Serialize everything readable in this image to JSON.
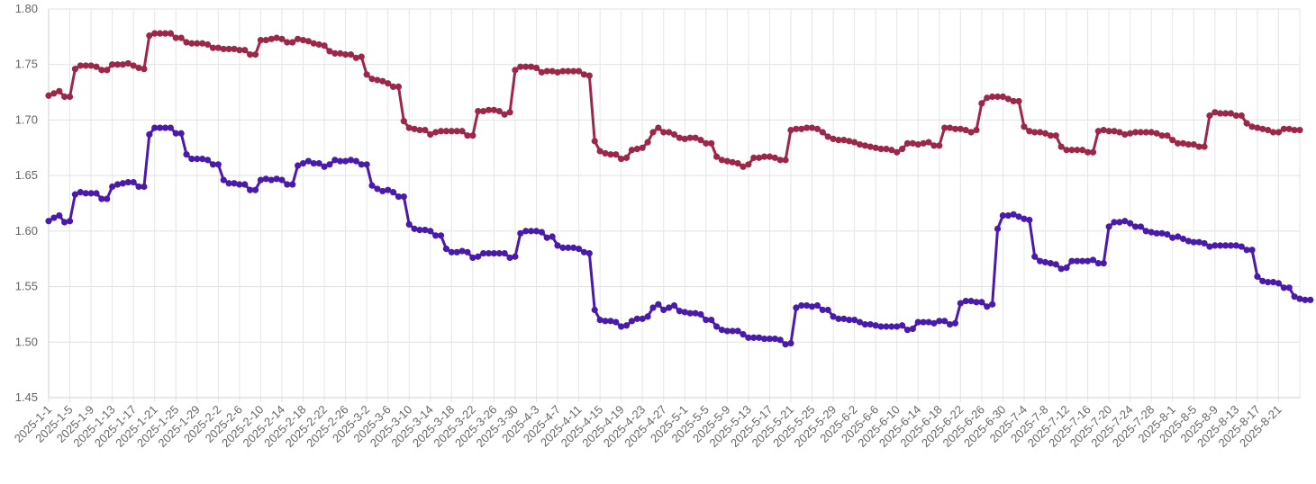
{
  "chart_data": {
    "type": "line",
    "title": "",
    "xlabel": "",
    "ylabel": "",
    "ylim": [
      1.45,
      1.8
    ],
    "yticks": [
      1.8,
      1.75,
      1.7,
      1.65,
      1.6,
      1.55,
      1.5,
      1.45
    ],
    "yticklabels": [
      "1.80",
      "1.75",
      "1.70",
      "1.65",
      "1.60",
      "1.55",
      "1.50",
      "1.45"
    ],
    "x_start": "2025-1-1",
    "x_end": "2025-8-21",
    "x_tick_labels": [
      "2025-1-1",
      "2025-1-5",
      "2025-1-9",
      "2025-1-13",
      "2025-1-17",
      "2025-1-21",
      "2025-1-25",
      "2025-1-29",
      "2025-2-2",
      "2025-2-6",
      "2025-2-10",
      "2025-2-14",
      "2025-2-18",
      "2025-2-22",
      "2025-2-26",
      "2025-3-2",
      "2025-3-6",
      "2025-3-10",
      "2025-3-14",
      "2025-3-18",
      "2025-3-22",
      "2025-3-26",
      "2025-3-30",
      "2025-4-3",
      "2025-4-7",
      "2025-4-11",
      "2025-4-15",
      "2025-4-19",
      "2025-4-23",
      "2025-4-27",
      "2025-5-1",
      "2025-5-5",
      "2025-5-9",
      "2025-5-13",
      "2025-5-17",
      "2025-5-21",
      "2025-5-25",
      "2025-5-29",
      "2025-6-2",
      "2025-6-6",
      "2025-6-10",
      "2025-6-14",
      "2025-6-18",
      "2025-6-22",
      "2025-6-26",
      "2025-6-30",
      "2025-7-4",
      "2025-7-8",
      "2025-7-12",
      "2025-7-16",
      "2025-7-20",
      "2025-7-24",
      "2025-7-28",
      "2025-8-1",
      "2025-8-5",
      "2025-8-9",
      "2025-8-13",
      "2025-8-17",
      "2025-8-21"
    ],
    "grid": true,
    "legend": "none",
    "series": [
      {
        "color": "#9b2749",
        "values": [
          1.722,
          1.724,
          1.726,
          1.721,
          1.721,
          1.746,
          1.749,
          1.749,
          1.749,
          1.748,
          1.745,
          1.745,
          1.75,
          1.75,
          1.75,
          1.751,
          1.749,
          1.747,
          1.746,
          1.776,
          1.778,
          1.778,
          1.778,
          1.778,
          1.774,
          1.774,
          1.77,
          1.769,
          1.769,
          1.769,
          1.768,
          1.765,
          1.765,
          1.764,
          1.764,
          1.764,
          1.763,
          1.763,
          1.759,
          1.759,
          1.772,
          1.772,
          1.773,
          1.774,
          1.773,
          1.77,
          1.77,
          1.773,
          1.772,
          1.771,
          1.769,
          1.768,
          1.767,
          1.762,
          1.76,
          1.76,
          1.759,
          1.759,
          1.756,
          1.757,
          1.741,
          1.737,
          1.736,
          1.735,
          1.733,
          1.73,
          1.73,
          1.699,
          1.693,
          1.692,
          1.691,
          1.691,
          1.687,
          1.689,
          1.69,
          1.69,
          1.69,
          1.69,
          1.69,
          1.686,
          1.686,
          1.708,
          1.708,
          1.709,
          1.709,
          1.708,
          1.705,
          1.707,
          1.745,
          1.748,
          1.748,
          1.748,
          1.747,
          1.743,
          1.744,
          1.744,
          1.743,
          1.744,
          1.744,
          1.744,
          1.744,
          1.741,
          1.74,
          1.681,
          1.672,
          1.67,
          1.669,
          1.669,
          1.665,
          1.666,
          1.673,
          1.674,
          1.675,
          1.68,
          1.689,
          1.693,
          1.689,
          1.689,
          1.687,
          1.684,
          1.683,
          1.684,
          1.684,
          1.682,
          1.679,
          1.679,
          1.667,
          1.664,
          1.663,
          1.662,
          1.661,
          1.658,
          1.66,
          1.666,
          1.666,
          1.667,
          1.667,
          1.666,
          1.664,
          1.664,
          1.691,
          1.692,
          1.692,
          1.693,
          1.693,
          1.692,
          1.689,
          1.685,
          1.683,
          1.682,
          1.682,
          1.681,
          1.68,
          1.678,
          1.677,
          1.676,
          1.675,
          1.674,
          1.674,
          1.673,
          1.671,
          1.674,
          1.679,
          1.679,
          1.678,
          1.679,
          1.68,
          1.677,
          1.677,
          1.693,
          1.693,
          1.692,
          1.692,
          1.691,
          1.689,
          1.691,
          1.715,
          1.72,
          1.721,
          1.721,
          1.721,
          1.719,
          1.717,
          1.717,
          1.694,
          1.69,
          1.689,
          1.689,
          1.688,
          1.686,
          1.686,
          1.676,
          1.673,
          1.673,
          1.673,
          1.673,
          1.671,
          1.671,
          1.69,
          1.691,
          1.69,
          1.69,
          1.689,
          1.687,
          1.688,
          1.689,
          1.689,
          1.689,
          1.689,
          1.688,
          1.686,
          1.686,
          1.682,
          1.679,
          1.679,
          1.678,
          1.678,
          1.676,
          1.676,
          1.704,
          1.707,
          1.706,
          1.706,
          1.706,
          1.704,
          1.704,
          1.697,
          1.694,
          1.693,
          1.692,
          1.691,
          1.689,
          1.689,
          1.692,
          1.692,
          1.691,
          1.691
        ]
      },
      {
        "color": "#4a1aab",
        "values": [
          1.609,
          1.612,
          1.614,
          1.608,
          1.609,
          1.633,
          1.635,
          1.634,
          1.634,
          1.634,
          1.629,
          1.629,
          1.64,
          1.642,
          1.643,
          1.644,
          1.644,
          1.64,
          1.64,
          1.687,
          1.693,
          1.693,
          1.693,
          1.693,
          1.688,
          1.688,
          1.669,
          1.665,
          1.665,
          1.665,
          1.664,
          1.66,
          1.66,
          1.646,
          1.643,
          1.643,
          1.642,
          1.642,
          1.637,
          1.637,
          1.646,
          1.647,
          1.646,
          1.647,
          1.646,
          1.642,
          1.642,
          1.659,
          1.661,
          1.663,
          1.661,
          1.661,
          1.658,
          1.66,
          1.664,
          1.663,
          1.663,
          1.664,
          1.663,
          1.66,
          1.66,
          1.641,
          1.638,
          1.636,
          1.637,
          1.635,
          1.631,
          1.631,
          1.606,
          1.602,
          1.601,
          1.601,
          1.6,
          1.596,
          1.596,
          1.584,
          1.581,
          1.581,
          1.582,
          1.581,
          1.576,
          1.577,
          1.58,
          1.58,
          1.58,
          1.58,
          1.58,
          1.576,
          1.577,
          1.598,
          1.6,
          1.6,
          1.6,
          1.599,
          1.594,
          1.595,
          1.587,
          1.585,
          1.585,
          1.585,
          1.584,
          1.581,
          1.58,
          1.529,
          1.52,
          1.519,
          1.519,
          1.518,
          1.514,
          1.515,
          1.519,
          1.521,
          1.521,
          1.523,
          1.531,
          1.534,
          1.529,
          1.531,
          1.533,
          1.528,
          1.527,
          1.526,
          1.526,
          1.525,
          1.52,
          1.52,
          1.514,
          1.511,
          1.51,
          1.51,
          1.51,
          1.507,
          1.504,
          1.504,
          1.504,
          1.503,
          1.503,
          1.503,
          1.502,
          1.498,
          1.499,
          1.531,
          1.533,
          1.533,
          1.532,
          1.533,
          1.529,
          1.529,
          1.523,
          1.521,
          1.521,
          1.52,
          1.52,
          1.518,
          1.516,
          1.516,
          1.515,
          1.514,
          1.514,
          1.514,
          1.514,
          1.515,
          1.511,
          1.512,
          1.518,
          1.518,
          1.518,
          1.517,
          1.519,
          1.519,
          1.516,
          1.517,
          1.535,
          1.537,
          1.537,
          1.536,
          1.536,
          1.532,
          1.534,
          1.602,
          1.614,
          1.614,
          1.615,
          1.613,
          1.611,
          1.61,
          1.577,
          1.573,
          1.572,
          1.571,
          1.57,
          1.566,
          1.567,
          1.573,
          1.573,
          1.573,
          1.573,
          1.574,
          1.571,
          1.571,
          1.604,
          1.608,
          1.608,
          1.609,
          1.607,
          1.604,
          1.604,
          1.6,
          1.599,
          1.598,
          1.598,
          1.597,
          1.594,
          1.595,
          1.593,
          1.591,
          1.59,
          1.59,
          1.589,
          1.586,
          1.587,
          1.587,
          1.587,
          1.587,
          1.587,
          1.586,
          1.583,
          1.583,
          1.559,
          1.555,
          1.554,
          1.554,
          1.553,
          1.549,
          1.549,
          1.541,
          1.539,
          1.538,
          1.538
        ]
      }
    ]
  }
}
